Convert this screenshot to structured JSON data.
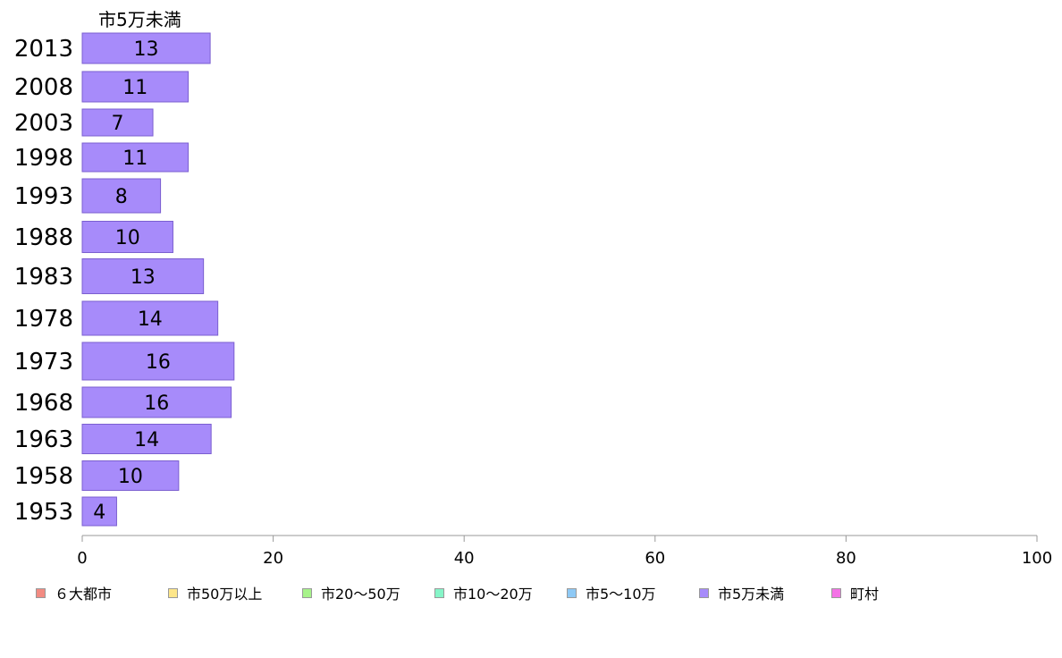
{
  "chart_data": {
    "type": "bar",
    "orientation": "horizontal",
    "series_title": "市5万未満",
    "categories": [
      "2013",
      "2008",
      "2003",
      "1998",
      "1993",
      "1988",
      "1983",
      "1978",
      "1973",
      "1968",
      "1963",
      "1958",
      "1953"
    ],
    "values": [
      13,
      11,
      7,
      11,
      8,
      10,
      13,
      14,
      16,
      16,
      14,
      10,
      4
    ],
    "plot_values": [
      13.4,
      11.1,
      7.4,
      11.1,
      8.2,
      9.5,
      12.7,
      14.2,
      15.9,
      15.6,
      13.5,
      10.1,
      3.6
    ],
    "xlim": [
      0,
      100
    ],
    "xticks": [
      0,
      20,
      40,
      60,
      80,
      100
    ],
    "bar_color": "#a78bfa",
    "bar_stroke": "#7b5fd0",
    "grid": false,
    "legend_position": "bottom",
    "legend": [
      {
        "label": "６大都市",
        "color": "#f28b82"
      },
      {
        "label": "市50万以上",
        "color": "#fde68a"
      },
      {
        "label": "市20〜50万",
        "color": "#a7f38a"
      },
      {
        "label": "市10〜20万",
        "color": "#86f5c8"
      },
      {
        "label": "市5〜10万",
        "color": "#8ec9f5"
      },
      {
        "label": "市5万未満",
        "color": "#a78bfa"
      },
      {
        "label": "町村",
        "color": "#f472e6"
      }
    ]
  }
}
